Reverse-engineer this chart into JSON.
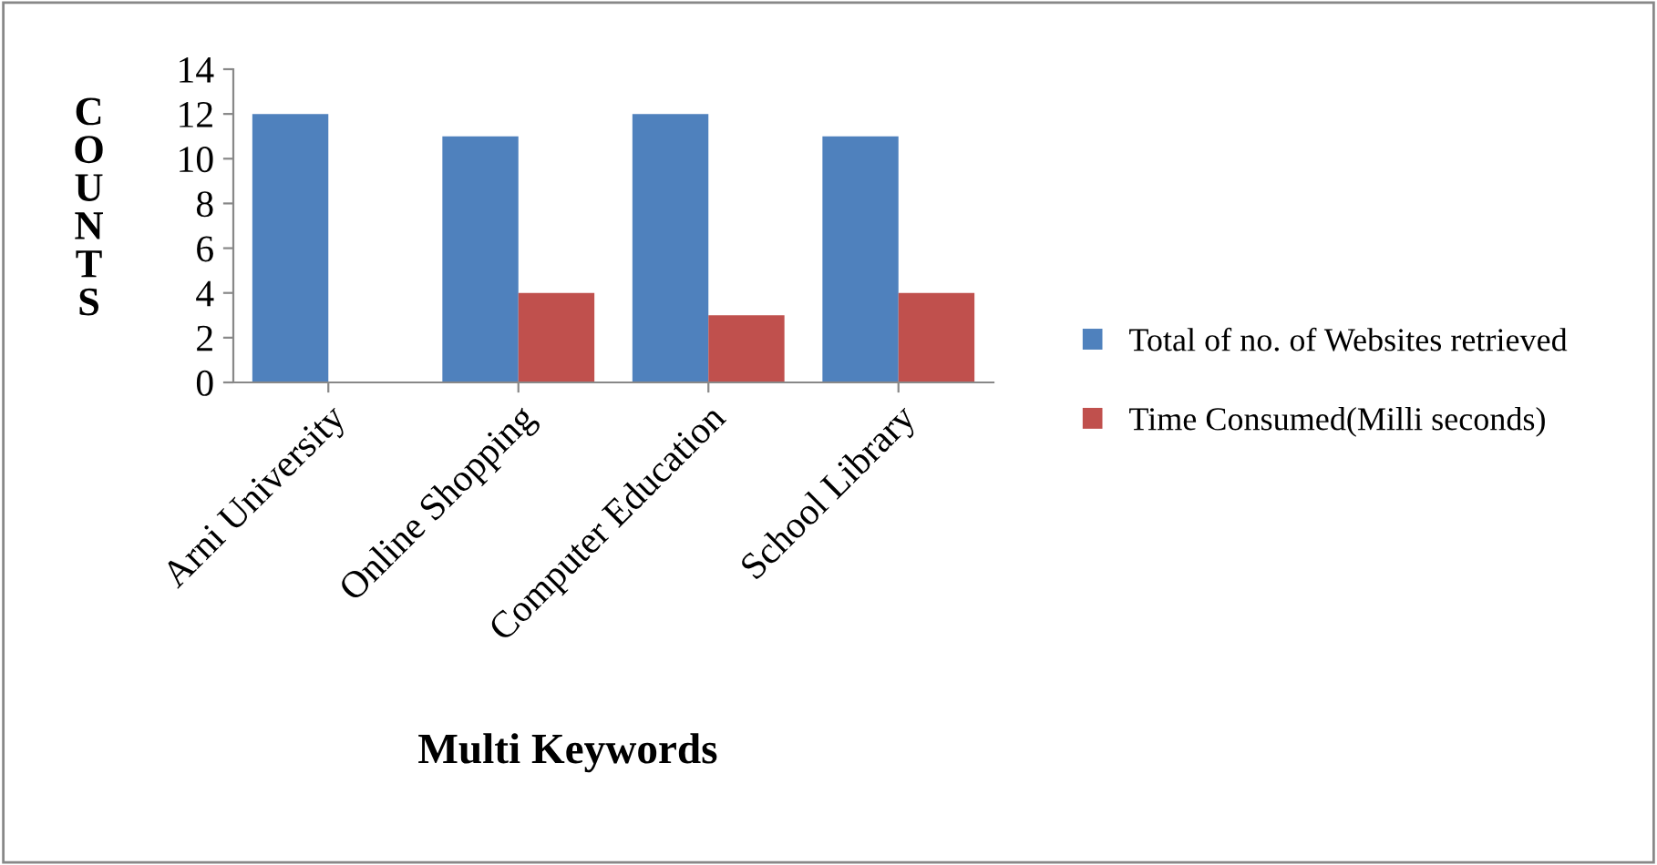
{
  "chart_data": {
    "type": "bar",
    "categories": [
      "Arni University",
      "Online Shopping",
      "Computer Education",
      "School Library"
    ],
    "series": [
      {
        "name": "Total of no. of Websites retrieved",
        "color": "#4f81bd",
        "values": [
          12,
          11,
          12,
          11
        ]
      },
      {
        "name": "Time Consumed(Milli seconds)",
        "color": "#c0504d",
        "values": [
          null,
          4,
          3,
          4
        ]
      }
    ],
    "xlabel": "Multi Keywords",
    "ylabel": "COUNTS",
    "ylim": [
      0,
      14
    ],
    "yticks": [
      0,
      2,
      4,
      6,
      8,
      10,
      12,
      14
    ],
    "grid": false,
    "legend": "right"
  }
}
